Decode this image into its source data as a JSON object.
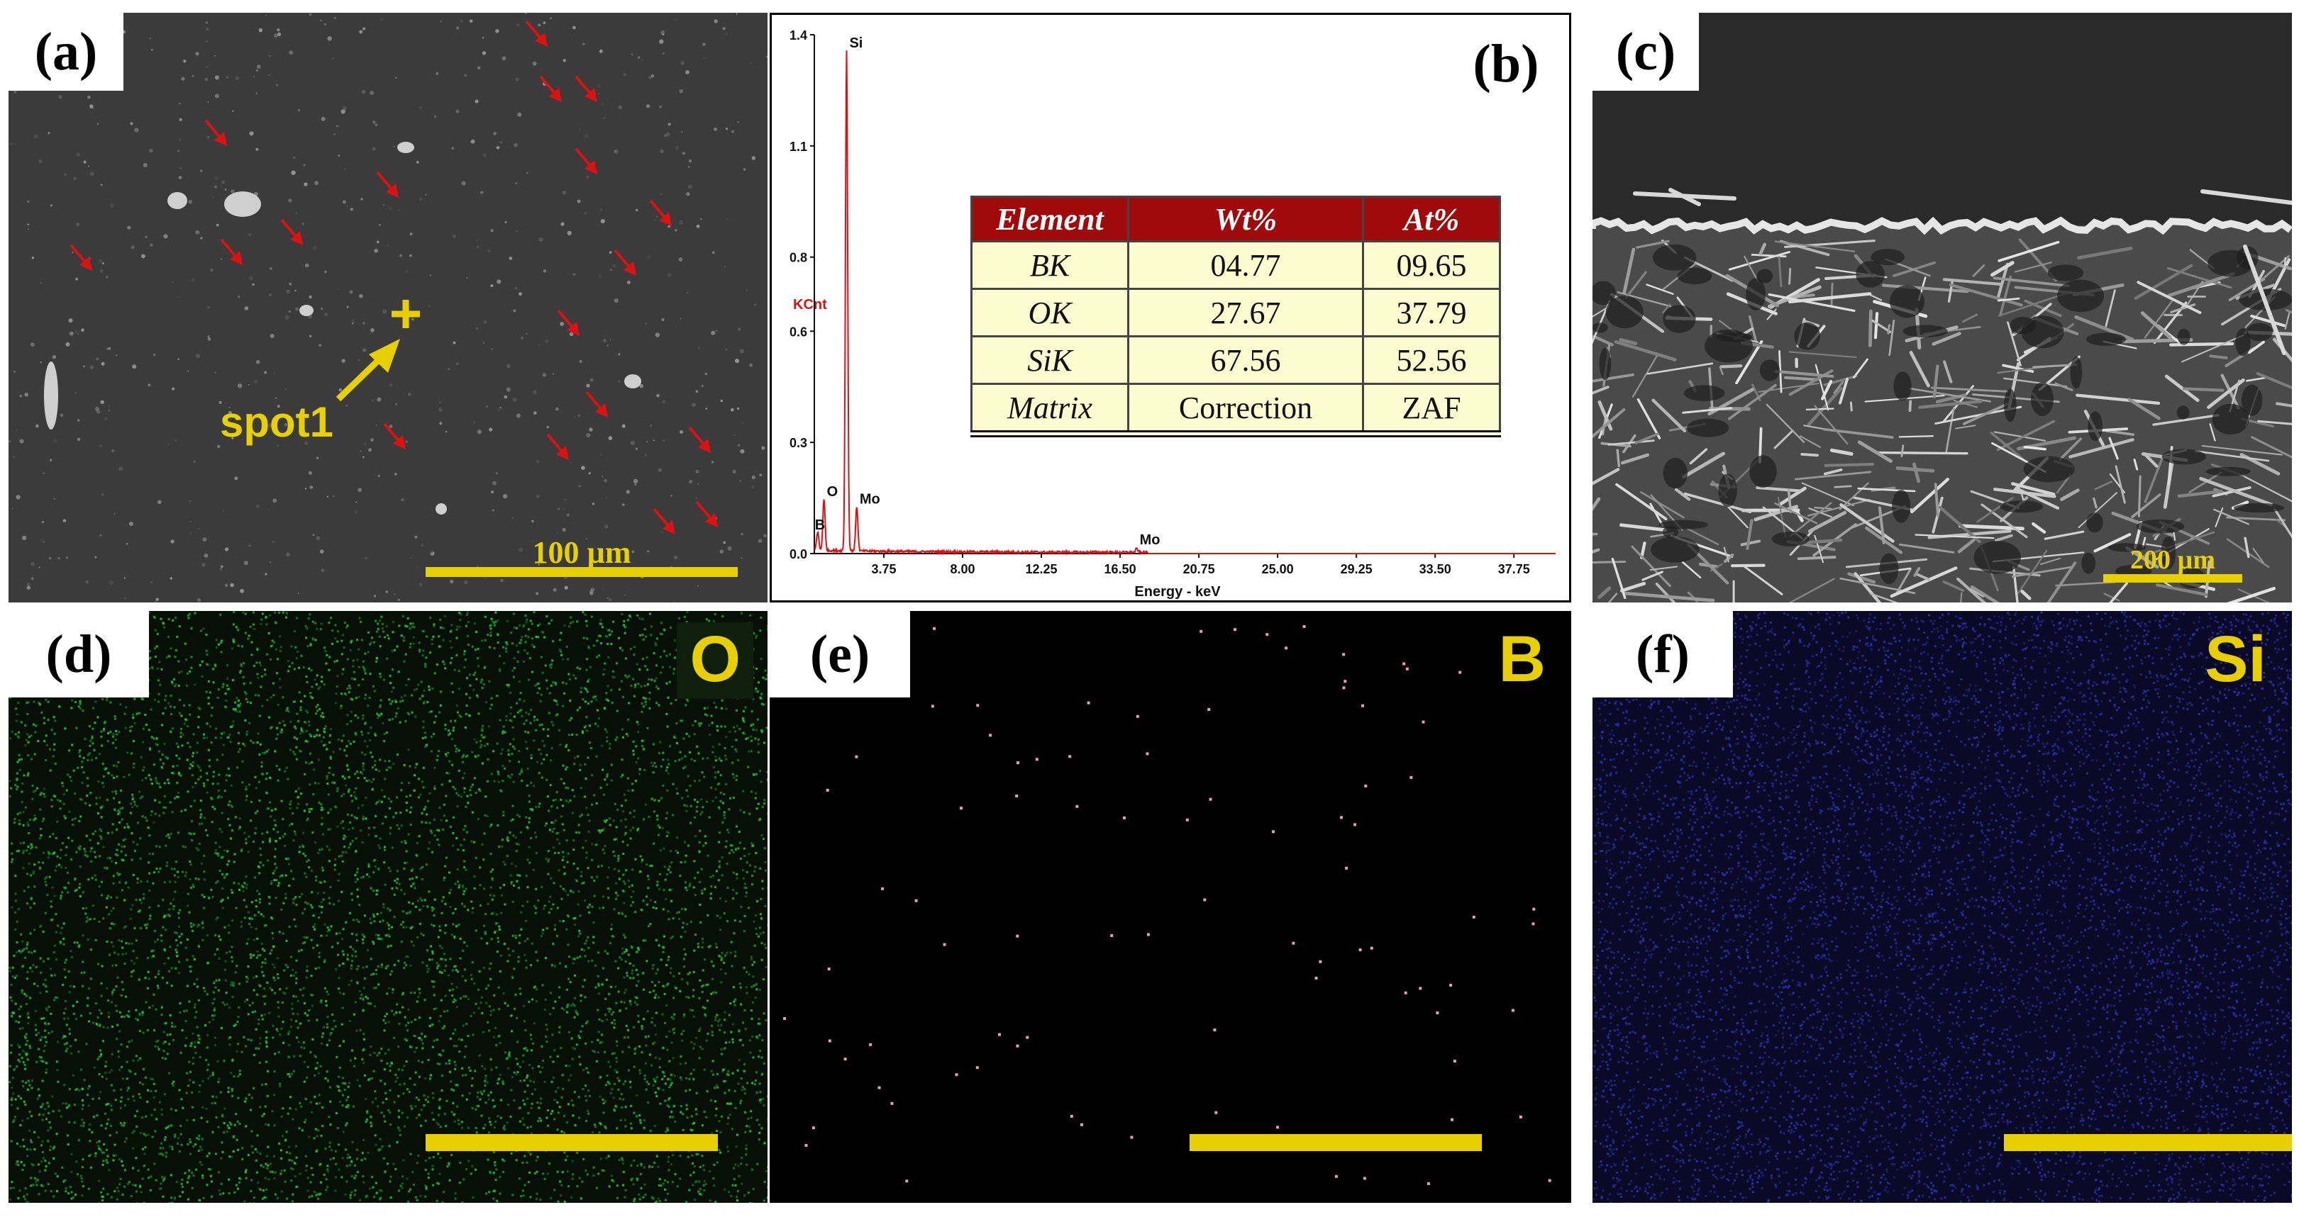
{
  "panels": {
    "a": {
      "label": "(a)",
      "spot_label": "spot1",
      "scale": "100 µm"
    },
    "b": {
      "label": "(b)"
    },
    "c": {
      "label": "(c)",
      "scale": "200 µm"
    },
    "d": {
      "label": "(d)",
      "element": "O"
    },
    "e": {
      "label": "(e)",
      "element": "B"
    },
    "f": {
      "label": "(f)",
      "element": "Si"
    }
  },
  "chart_data": {
    "type": "line",
    "xlabel": "Energy - keV",
    "ylabel": "KCnt",
    "xlim": [
      0,
      40
    ],
    "ylim": [
      0,
      1.4
    ],
    "x_ticks": [
      "3.75",
      "8.00",
      "12.25",
      "16.50",
      "20.75",
      "25.00",
      "29.25",
      "33.50",
      "37.75"
    ],
    "y_ticks": [
      "0.0",
      "0.3",
      "0.6",
      "0.8",
      "1.1",
      "1.4"
    ],
    "peaks": [
      {
        "label": "B",
        "x": 0.18,
        "y": 0.05
      },
      {
        "label": "O",
        "x": 0.52,
        "y": 0.14
      },
      {
        "label": "Si",
        "x": 1.74,
        "y": 1.35
      },
      {
        "label": "Mo",
        "x": 2.29,
        "y": 0.12
      },
      {
        "label": "Mo",
        "x": 17.4,
        "y": 0.01
      }
    ],
    "series_color": "#dd1111"
  },
  "eds_table": {
    "headers": [
      "Element",
      "Wt%",
      "At%"
    ],
    "rows": [
      {
        "element": "BK",
        "wt": "04.77",
        "at": "09.65"
      },
      {
        "element": "OK",
        "wt": "27.67",
        "at": "37.79"
      },
      {
        "element": "SiK",
        "wt": "67.56",
        "at": "52.56"
      },
      {
        "element": "Matrix",
        "wt": "Correction",
        "at": "ZAF"
      }
    ]
  },
  "colors": {
    "scale_bar": "#e8d000",
    "oxygen_map": "#1fc23a",
    "boron_map": "#e8a2a2",
    "silicon_map": "#2a2ea8",
    "arrows": "#dd1111"
  }
}
